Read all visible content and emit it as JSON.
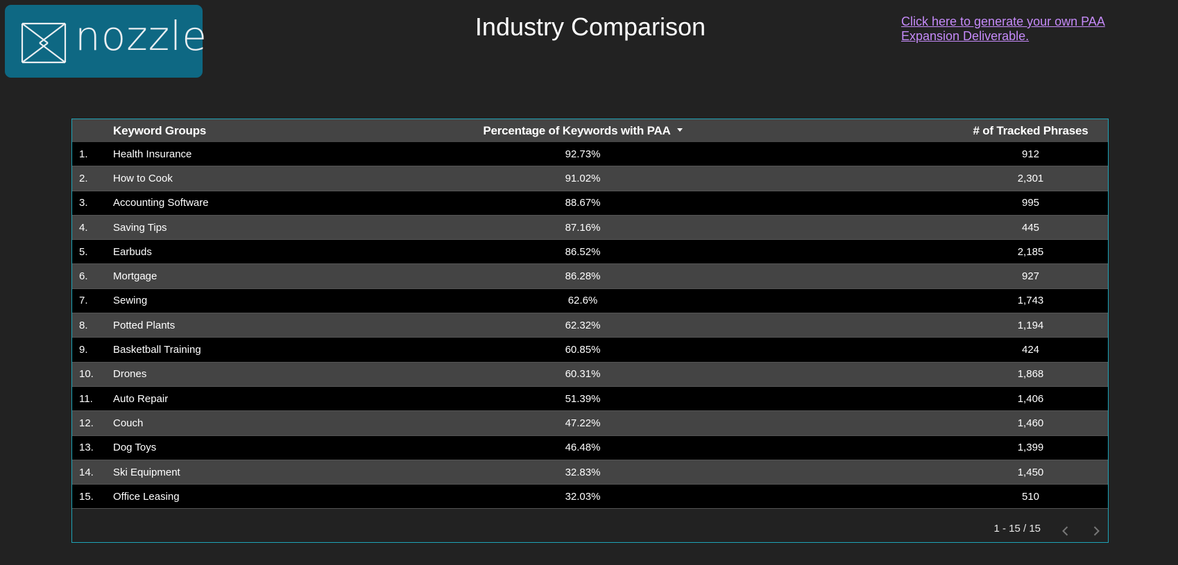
{
  "logo": {
    "text": "nozzle"
  },
  "header": {
    "title": "Industry Comparison",
    "link_text": "Click here to generate your own PAA Expansion Deliverable."
  },
  "table": {
    "columns": {
      "keyword_groups": "Keyword Groups",
      "percentage": "Percentage of Keywords with PAA",
      "tracked": "# of Tracked Phrases"
    },
    "sort_column": "Percentage of Keywords with PAA",
    "sort_direction": "descending",
    "rows": [
      {
        "rank": "1.",
        "group": "Health Insurance",
        "percent": "92.73%",
        "tracked": "912"
      },
      {
        "rank": "2.",
        "group": "How to Cook",
        "percent": "91.02%",
        "tracked": "2,301"
      },
      {
        "rank": "3.",
        "group": "Accounting Software",
        "percent": "88.67%",
        "tracked": "995"
      },
      {
        "rank": "4.",
        "group": "Saving Tips",
        "percent": "87.16%",
        "tracked": "445"
      },
      {
        "rank": "5.",
        "group": "Earbuds",
        "percent": "86.52%",
        "tracked": "2,185"
      },
      {
        "rank": "6.",
        "group": "Mortgage",
        "percent": "86.28%",
        "tracked": "927"
      },
      {
        "rank": "7.",
        "group": "Sewing",
        "percent": "62.6%",
        "tracked": "1,743"
      },
      {
        "rank": "8.",
        "group": "Potted Plants",
        "percent": "62.32%",
        "tracked": "1,194"
      },
      {
        "rank": "9.",
        "group": "Basketball Training",
        "percent": "60.85%",
        "tracked": "424"
      },
      {
        "rank": "10.",
        "group": "Drones",
        "percent": "60.31%",
        "tracked": "1,868"
      },
      {
        "rank": "11.",
        "group": "Auto Repair",
        "percent": "51.39%",
        "tracked": "1,406"
      },
      {
        "rank": "12.",
        "group": "Couch",
        "percent": "47.22%",
        "tracked": "1,460"
      },
      {
        "rank": "13.",
        "group": "Dog Toys",
        "percent": "46.48%",
        "tracked": "1,399"
      },
      {
        "rank": "14.",
        "group": "Ski Equipment",
        "percent": "32.83%",
        "tracked": "1,450"
      },
      {
        "rank": "15.",
        "group": "Office Leasing",
        "percent": "32.03%",
        "tracked": "510"
      }
    ],
    "pagination": {
      "range": "1 - 15 / 15",
      "prev_icon": "chevron-left-icon",
      "next_icon": "chevron-right-icon"
    }
  },
  "colors": {
    "background": "#222222",
    "logo_background": "#0e6883",
    "table_border": "#1ea4b7",
    "row_dark": "#000000",
    "row_light": "#444444",
    "link": "#c58af9"
  }
}
